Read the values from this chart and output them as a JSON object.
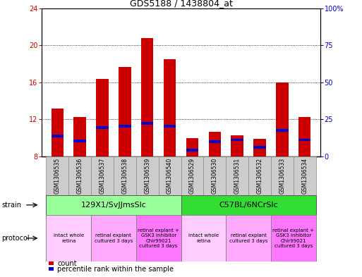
{
  "title": "GDS5188 / 1438804_at",
  "samples": [
    "GSM1306535",
    "GSM1306536",
    "GSM1306537",
    "GSM1306538",
    "GSM1306539",
    "GSM1306540",
    "GSM1306529",
    "GSM1306530",
    "GSM1306531",
    "GSM1306532",
    "GSM1306533",
    "GSM1306534"
  ],
  "count_values": [
    13.2,
    12.3,
    16.4,
    17.7,
    20.8,
    18.5,
    10.0,
    10.7,
    10.3,
    9.9,
    16.0,
    12.3
  ],
  "percentile_values": [
    10.2,
    9.7,
    11.1,
    11.3,
    11.6,
    11.3,
    8.7,
    9.6,
    9.8,
    9.0,
    10.8,
    9.8
  ],
  "ylim_left": [
    8,
    24
  ],
  "ylim_right": [
    0,
    100
  ],
  "yticks_left": [
    8,
    12,
    16,
    20,
    24
  ],
  "yticks_right": [
    0,
    25,
    50,
    75,
    100
  ],
  "bar_color_red": "#cc0000",
  "bar_color_blue": "#0000cc",
  "bar_width": 0.55,
  "strain_groups": [
    {
      "label": "129X1/SvJJmsSlc",
      "start": 0,
      "end": 6,
      "color": "#99ff99"
    },
    {
      "label": "C57BL/6NCrSlc",
      "start": 6,
      "end": 12,
      "color": "#33dd33"
    }
  ],
  "protocol_groups": [
    {
      "label": "intact whole\nretina",
      "start": 0,
      "end": 2,
      "color": "#ffccff"
    },
    {
      "label": "retinal explant\ncultured 3 days",
      "start": 2,
      "end": 4,
      "color": "#ffaaff"
    },
    {
      "label": "retinal explant +\nGSK3 inhibitor\nChir99021\ncultured 3 days",
      "start": 4,
      "end": 6,
      "color": "#ff77ff"
    },
    {
      "label": "intact whole\nretina",
      "start": 6,
      "end": 8,
      "color": "#ffccff"
    },
    {
      "label": "retinal explant\ncultured 3 days",
      "start": 8,
      "end": 10,
      "color": "#ffaaff"
    },
    {
      "label": "retinal explant +\nGSK3 inhibitor\nChir99021\ncultured 3 days",
      "start": 10,
      "end": 12,
      "color": "#ff77ff"
    }
  ],
  "legend_count_color": "#cc0000",
  "legend_percentile_color": "#0000cc",
  "bg_color": "#ffffff",
  "left_axis_color": "#cc0000",
  "right_axis_color": "#0000cc",
  "grid_yticks": [
    12,
    16,
    20
  ],
  "baseline": 8
}
